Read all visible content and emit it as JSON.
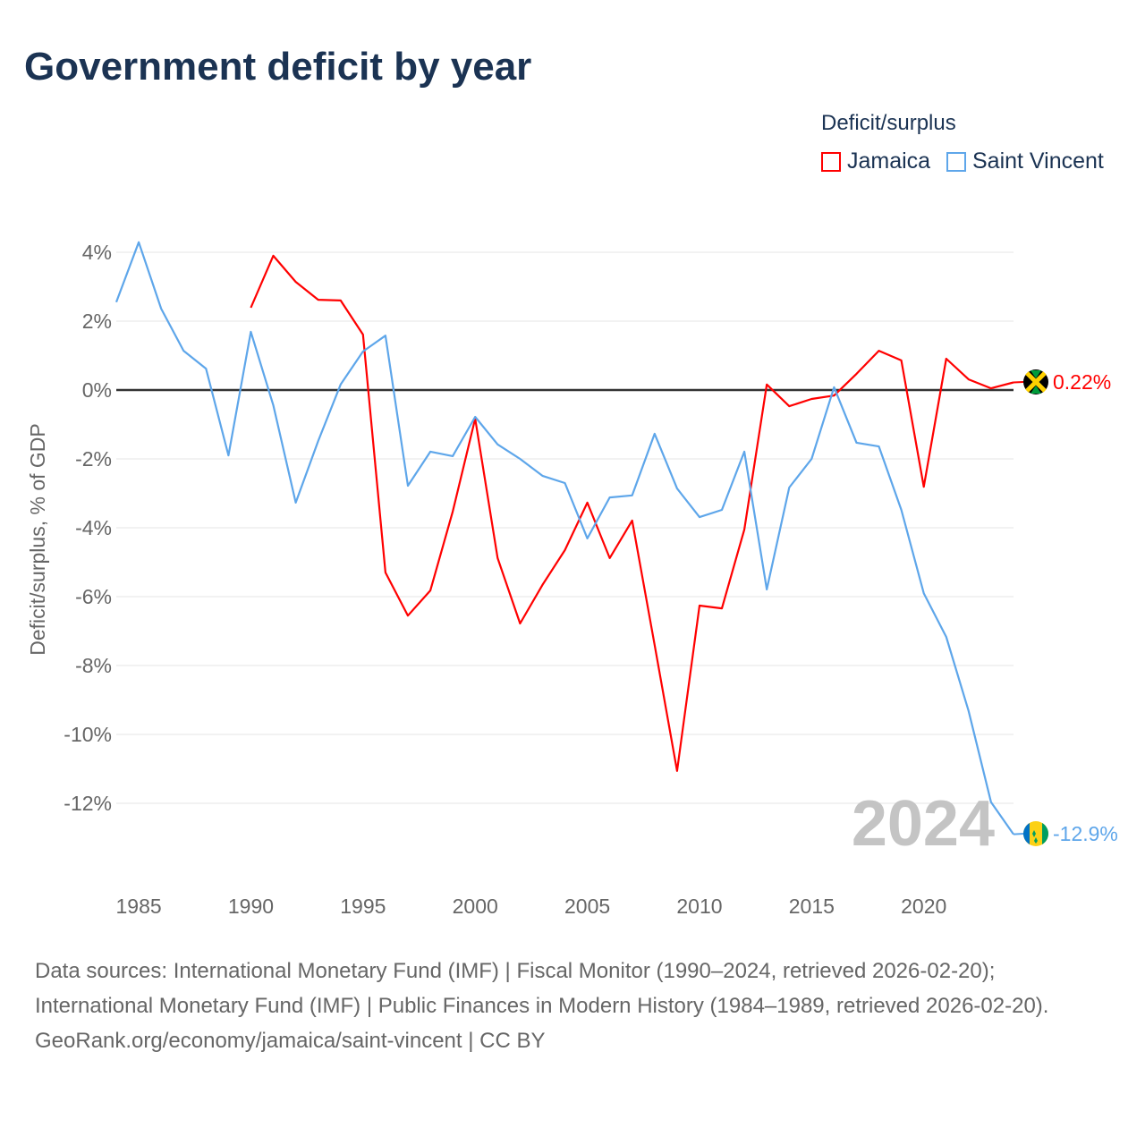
{
  "title": "Government deficit by year",
  "legend": {
    "title": "Deficit/surplus",
    "items": [
      {
        "name": "Jamaica",
        "color": "#ff0000"
      },
      {
        "name": "Saint Vincent",
        "color": "#5ea6ea"
      }
    ]
  },
  "watermark_year": "2024",
  "footer": {
    "sources": "Data sources: International Monetary Fund (IMF) | Fiscal Monitor (1990–2024, retrieved 2026-02-20); International Monetary Fund (IMF) | Public Finances in Modern History (1984–1989, retrieved 2026-02-20).",
    "link": "GeoRank.org/economy/jamaica/saint-vincent | CC BY"
  },
  "chart_data": {
    "type": "line",
    "title": "Government deficit by year",
    "xlabel": "",
    "ylabel": "Deficit/surplus, % of GDP",
    "xlim": [
      1984,
      2024
    ],
    "ylim": [
      -14,
      4.5
    ],
    "yticks": [
      4,
      2,
      0,
      -2,
      -4,
      -6,
      -8,
      -10,
      -12
    ],
    "ytick_labels": [
      "4%",
      "2%",
      "0%",
      "-2%",
      "-4%",
      "-6%",
      "-8%",
      "-10%",
      "-12%"
    ],
    "xticks": [
      1985,
      1990,
      1995,
      2000,
      2005,
      2010,
      2015,
      2020
    ],
    "xtick_labels": [
      "1985",
      "1990",
      "1995",
      "2000",
      "2005",
      "2010",
      "2015",
      "2020"
    ],
    "grid": true,
    "legend_position": "top-right",
    "series": [
      {
        "name": "Jamaica",
        "color": "#ff0000",
        "end_label": "0.22%",
        "x": [
          1990,
          1991,
          1992,
          1993,
          1994,
          1995,
          1996,
          1997,
          1998,
          1999,
          2000,
          2001,
          2002,
          2003,
          2004,
          2005,
          2006,
          2007,
          2008,
          2009,
          2010,
          2011,
          2012,
          2013,
          2014,
          2015,
          2016,
          2017,
          2018,
          2019,
          2020,
          2021,
          2022,
          2023,
          2024
        ],
        "values": [
          2.39,
          3.9,
          3.14,
          2.62,
          2.6,
          1.61,
          -5.3,
          -6.55,
          -5.82,
          -3.53,
          -0.83,
          -4.88,
          -6.78,
          -5.66,
          -4.65,
          -3.27,
          -4.88,
          -3.79,
          -7.4,
          -11.06,
          -6.26,
          -6.34,
          -4.05,
          0.16,
          -0.47,
          -0.26,
          -0.16,
          0.47,
          1.14,
          0.86,
          -2.81,
          0.91,
          0.31,
          0.05,
          0.22
        ]
      },
      {
        "name": "Saint Vincent",
        "color": "#5ea6ea",
        "end_label": "-12.9%",
        "x": [
          1984,
          1985,
          1986,
          1987,
          1988,
          1989,
          1990,
          1991,
          1992,
          1993,
          1994,
          1995,
          1996,
          1997,
          1998,
          1999,
          2000,
          2001,
          2002,
          2003,
          2004,
          2005,
          2006,
          2007,
          2008,
          2009,
          2010,
          2011,
          2012,
          2013,
          2014,
          2015,
          2016,
          2017,
          2018,
          2019,
          2020,
          2021,
          2022,
          2023,
          2024
        ],
        "values": [
          2.55,
          4.29,
          2.36,
          1.14,
          0.62,
          -1.9,
          1.69,
          -0.44,
          -3.27,
          -1.48,
          0.16,
          1.12,
          1.58,
          -2.78,
          -1.79,
          -1.92,
          -0.78,
          -1.58,
          -2.0,
          -2.49,
          -2.7,
          -4.31,
          -3.12,
          -3.06,
          -1.27,
          -2.86,
          -3.69,
          -3.48,
          -1.79,
          -5.79,
          -2.83,
          -2.0,
          0.08,
          -1.53,
          -1.64,
          -3.48,
          -5.9,
          -7.17,
          -9.32,
          -11.97,
          -12.9
        ]
      }
    ]
  }
}
